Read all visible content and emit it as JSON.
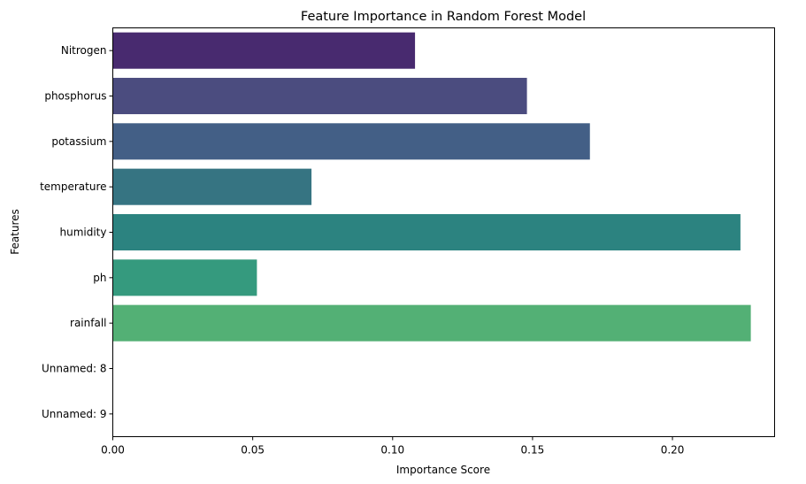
{
  "chart_data": {
    "type": "bar",
    "orientation": "horizontal",
    "title": "Feature Importance in Random Forest Model",
    "xlabel": "Importance Score",
    "ylabel": "Features",
    "categories": [
      "Nitrogen",
      "phosphorus",
      "potassium",
      "temperature",
      "humidity",
      "ph",
      "rainfall",
      "Unnamed: 8",
      "Unnamed: 9"
    ],
    "values": [
      0.108,
      0.148,
      0.1705,
      0.071,
      0.2243,
      0.0515,
      0.228,
      0.0,
      0.0
    ],
    "colors": [
      "#482a6f",
      "#4b4c7f",
      "#435f86",
      "#367482",
      "#2c8380",
      "#359a7e",
      "#53b075",
      "#6ccd5a",
      "#b7de2a"
    ],
    "xlim": [
      0,
      0.2365
    ],
    "xticks": [
      0.0,
      0.05,
      0.1,
      0.15,
      0.2
    ],
    "xtick_labels": [
      "0.00",
      "0.05",
      "0.10",
      "0.15",
      "0.20"
    ],
    "grid": false,
    "legend": "none"
  }
}
